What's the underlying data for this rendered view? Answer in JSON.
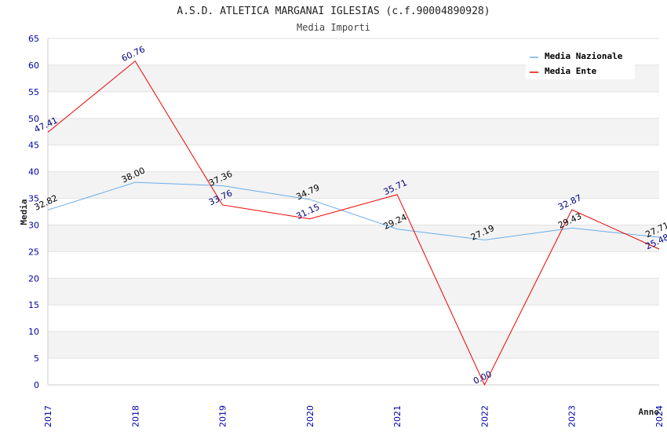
{
  "chart_data": {
    "type": "line",
    "title": "A.S.D. ATLETICA MARGANAI IGLESIAS (c.f.90004890928)",
    "subtitle": "Media Importi",
    "xlabel": "Anno",
    "ylabel": "Media",
    "x": [
      "2017",
      "2018",
      "2019",
      "2020",
      "2021",
      "2022",
      "2023",
      "2024"
    ],
    "ylim": [
      0,
      65
    ],
    "yticks": [
      0,
      5,
      10,
      15,
      20,
      25,
      30,
      35,
      40,
      45,
      50,
      55,
      60,
      65
    ],
    "grid": true,
    "legend_position": "top-right",
    "series": [
      {
        "name": "Media Nazionale",
        "color": "#6aaee8",
        "label_color": "#000000",
        "values": [
          32.82,
          38.0,
          37.36,
          34.79,
          29.24,
          27.19,
          29.43,
          27.71
        ],
        "labels": [
          "32.82",
          "38.00",
          "37.36",
          "34.79",
          "29.24",
          "27.19",
          "29.43",
          "27.71"
        ]
      },
      {
        "name": "Media Ente",
        "color": "#ee0000",
        "label_color": "#000080",
        "values": [
          47.41,
          60.76,
          33.76,
          31.15,
          35.71,
          0.0,
          32.87,
          25.48
        ],
        "labels": [
          "47.41",
          "60.76",
          "33.76",
          "31.15",
          "35.71",
          "0.00",
          "32.87",
          "25.48"
        ]
      }
    ]
  }
}
